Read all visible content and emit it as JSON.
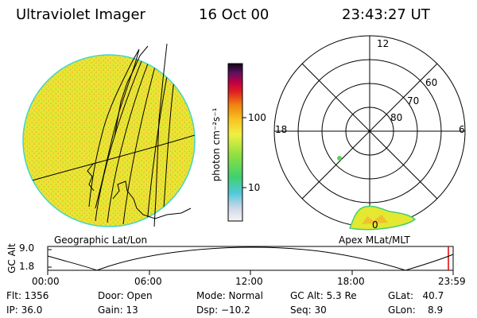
{
  "header": {
    "title": "Ultraviolet Imager",
    "date": "16 Oct 00",
    "time": "23:43:27 UT"
  },
  "colorbar": {
    "unit_label": "photon cm⁻²s⁻¹",
    "ticks": [
      "100",
      "10"
    ]
  },
  "left_panel": {
    "caption": "Geographic Lat/Lon"
  },
  "right_panel": {
    "caption": "Apex MLat/MLT",
    "mlt_labels": [
      "12",
      "18",
      "6",
      "0"
    ],
    "lat_labels": [
      "60",
      "70",
      "80"
    ]
  },
  "altitude_plot": {
    "ylabel": "GC Alt",
    "yticks": [
      "9.0",
      "1.8"
    ],
    "xticks": [
      "00:00",
      "06:00",
      "12:00",
      "18:00",
      "23:59"
    ]
  },
  "info": {
    "flt": "Flt: 1356",
    "ip": "IP: 36.0",
    "door": "Door: Open",
    "gain": "Gain: 13",
    "mode": "Mode: Normal",
    "dsp": "Dsp:  −10.2",
    "gcalt": "GC Alt: 5.3 Re",
    "seq": "Seq: 30",
    "glat": "GLat:   40.7",
    "glon": "GLon:    8.9"
  }
}
